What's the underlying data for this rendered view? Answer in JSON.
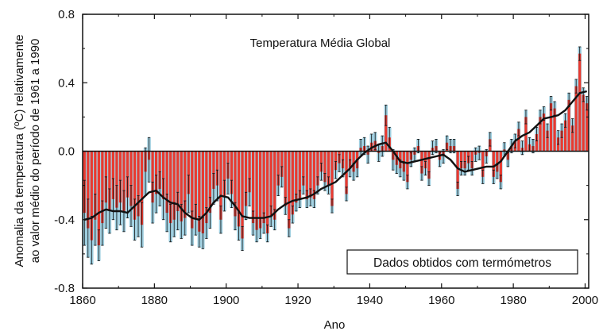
{
  "chart_data": {
    "type": "bar",
    "title": "Temperatura Média Global",
    "xlabel": "Ano",
    "ylabel_lines": [
      "Anomalia da temperatura (ºC) relativamente",
      "ao valor médio do período de 1961 a 1990"
    ],
    "annotation": "Dados obtidos com termómetros",
    "xlim": [
      1860,
      2001
    ],
    "ylim": [
      -0.8,
      0.8
    ],
    "x_ticks": [
      1860,
      1880,
      1900,
      1920,
      1940,
      1960,
      1980,
      2000
    ],
    "y_ticks": [
      {
        "value": 0.8,
        "label": "0.8"
      },
      {
        "value": 0.4,
        "label": "0.4"
      },
      {
        "value": 0.0,
        "label": "0.0"
      },
      {
        "value": -0.4,
        "label": "-0.4"
      },
      {
        "value": -0.8,
        "label": "-0.8"
      }
    ],
    "grid": false,
    "colors": {
      "bar": "#e83a30",
      "error_bar": "#111111",
      "uncertainty": "#9fcfe0",
      "smooth_line": "#111111",
      "zero_line": "#111111"
    },
    "anomaly_series": {
      "x": [
        1860,
        1861,
        1862,
        1863,
        1864,
        1865,
        1866,
        1867,
        1868,
        1869,
        1870,
        1871,
        1872,
        1873,
        1874,
        1875,
        1876,
        1877,
        1878,
        1879,
        1880,
        1881,
        1882,
        1883,
        1884,
        1885,
        1886,
        1887,
        1888,
        1889,
        1890,
        1891,
        1892,
        1893,
        1894,
        1895,
        1896,
        1897,
        1898,
        1899,
        1900,
        1901,
        1902,
        1903,
        1904,
        1905,
        1906,
        1907,
        1908,
        1909,
        1910,
        1911,
        1912,
        1913,
        1914,
        1915,
        1916,
        1917,
        1918,
        1919,
        1920,
        1921,
        1922,
        1923,
        1924,
        1925,
        1926,
        1927,
        1928,
        1929,
        1930,
        1931,
        1932,
        1933,
        1934,
        1935,
        1936,
        1937,
        1938,
        1939,
        1940,
        1941,
        1942,
        1943,
        1944,
        1945,
        1946,
        1947,
        1948,
        1949,
        1950,
        1951,
        1952,
        1953,
        1954,
        1955,
        1956,
        1957,
        1958,
        1959,
        1960,
        1961,
        1962,
        1963,
        1964,
        1965,
        1966,
        1967,
        1968,
        1969,
        1970,
        1971,
        1972,
        1973,
        1974,
        1975,
        1976,
        1977,
        1978,
        1979,
        1980,
        1981,
        1982,
        1983,
        1984,
        1985,
        1986,
        1987,
        1988,
        1989,
        1990,
        1991,
        1992,
        1993,
        1994,
        1995,
        1996,
        1997,
        1998,
        1999,
        2000
      ],
      "values": [
        -0.36,
        -0.45,
        -0.52,
        -0.4,
        -0.55,
        -0.42,
        -0.3,
        -0.35,
        -0.28,
        -0.33,
        -0.3,
        -0.35,
        -0.27,
        -0.32,
        -0.4,
        -0.38,
        -0.43,
        -0.12,
        -0.05,
        -0.3,
        -0.25,
        -0.22,
        -0.28,
        -0.36,
        -0.42,
        -0.4,
        -0.35,
        -0.41,
        -0.39,
        -0.25,
        -0.45,
        -0.4,
        -0.47,
        -0.48,
        -0.42,
        -0.36,
        -0.22,
        -0.2,
        -0.4,
        -0.26,
        -0.16,
        -0.25,
        -0.38,
        -0.44,
        -0.51,
        -0.32,
        -0.24,
        -0.42,
        -0.46,
        -0.45,
        -0.42,
        -0.48,
        -0.38,
        -0.4,
        -0.2,
        -0.15,
        -0.32,
        -0.45,
        -0.37,
        -0.3,
        -0.28,
        -0.2,
        -0.28,
        -0.27,
        -0.28,
        -0.2,
        -0.12,
        -0.18,
        -0.2,
        -0.32,
        -0.11,
        -0.07,
        -0.1,
        -0.25,
        -0.1,
        -0.12,
        -0.1,
        0.02,
        0.03,
        -0.02,
        0.05,
        0.06,
        -0.01,
        0.03,
        0.21,
        0.08,
        -0.05,
        -0.08,
        -0.1,
        -0.12,
        -0.18,
        -0.05,
        -0.02,
        0.03,
        -0.13,
        -0.1,
        -0.16,
        0.02,
        0.03,
        -0.05,
        -0.03,
        0.05,
        0.03,
        0.03,
        -0.22,
        -0.1,
        -0.1,
        -0.07,
        -0.1,
        -0.02,
        -0.01,
        -0.15,
        -0.03,
        0.07,
        -0.15,
        -0.12,
        -0.18,
        0.01,
        -0.05,
        0.03,
        0.06,
        0.13,
        0.02,
        0.2,
        0.04,
        0.03,
        0.1,
        0.2,
        0.22,
        0.12,
        0.28,
        0.25,
        0.08,
        0.12,
        0.18,
        0.3,
        0.15,
        0.38,
        0.57,
        0.33,
        0.28
      ],
      "uncertainty_low": [
        -0.55,
        -0.62,
        -0.66,
        -0.55,
        -0.64,
        -0.55,
        -0.45,
        -0.48,
        -0.4,
        -0.46,
        -0.43,
        -0.47,
        -0.39,
        -0.44,
        -0.52,
        -0.5,
        -0.56,
        -0.26,
        -0.18,
        -0.42,
        -0.36,
        -0.32,
        -0.4,
        -0.47,
        -0.53,
        -0.5,
        -0.46,
        -0.51,
        -0.49,
        -0.36,
        -0.55,
        -0.49,
        -0.56,
        -0.57,
        -0.51,
        -0.45,
        -0.31,
        -0.29,
        -0.48,
        -0.35,
        -0.25,
        -0.33,
        -0.46,
        -0.52,
        -0.58,
        -0.4,
        -0.32,
        -0.49,
        -0.53,
        -0.51,
        -0.48,
        -0.53,
        -0.44,
        -0.46,
        -0.26,
        -0.21,
        -0.37,
        -0.5,
        -0.42,
        -0.35,
        -0.33,
        -0.25,
        -0.33,
        -0.32,
        -0.33,
        -0.25,
        -0.17,
        -0.23,
        -0.25,
        -0.36,
        -0.16,
        -0.12,
        -0.15,
        -0.29,
        -0.15,
        -0.17,
        -0.15,
        -0.03,
        -0.02,
        -0.07,
        0.0,
        0.01,
        -0.06,
        -0.03,
        0.15,
        0.02,
        -0.11,
        -0.13,
        -0.15,
        -0.17,
        -0.22,
        -0.09,
        -0.06,
        -0.01,
        -0.17,
        -0.14,
        -0.2,
        -0.02,
        -0.01,
        -0.09,
        -0.07,
        0.01,
        -0.01,
        -0.01,
        -0.26,
        -0.14,
        -0.14,
        -0.11,
        -0.14,
        -0.06,
        -0.05,
        -0.19,
        -0.07,
        0.03,
        -0.19,
        -0.16,
        -0.22,
        -0.03,
        -0.09,
        -0.01,
        0.02,
        0.09,
        -0.02,
        0.16,
        0.0,
        -0.01,
        0.06,
        0.16,
        0.18,
        0.08,
        0.24,
        0.21,
        0.04,
        0.08,
        0.14,
        0.26,
        0.11,
        0.34,
        0.53,
        0.29,
        0.24
      ],
      "uncertainty_high": [
        -0.17,
        -0.28,
        -0.38,
        -0.25,
        -0.46,
        -0.29,
        -0.15,
        -0.22,
        -0.16,
        -0.2,
        -0.17,
        -0.23,
        -0.15,
        -0.2,
        -0.28,
        -0.26,
        -0.3,
        0.02,
        0.08,
        -0.18,
        -0.14,
        -0.12,
        -0.16,
        -0.25,
        -0.31,
        -0.3,
        -0.24,
        -0.31,
        -0.29,
        -0.14,
        -0.35,
        -0.31,
        -0.38,
        -0.39,
        -0.33,
        -0.27,
        -0.13,
        -0.11,
        -0.32,
        -0.17,
        -0.07,
        -0.17,
        -0.3,
        -0.36,
        -0.44,
        -0.24,
        -0.16,
        -0.35,
        -0.39,
        -0.39,
        -0.36,
        -0.43,
        -0.32,
        -0.34,
        -0.14,
        -0.09,
        -0.27,
        -0.4,
        -0.32,
        -0.25,
        -0.23,
        -0.15,
        -0.23,
        -0.22,
        -0.23,
        -0.15,
        -0.07,
        -0.13,
        -0.15,
        -0.28,
        -0.06,
        -0.02,
        -0.05,
        -0.21,
        -0.05,
        -0.07,
        -0.05,
        0.07,
        0.08,
        0.03,
        0.1,
        0.11,
        0.04,
        0.09,
        0.27,
        0.14,
        0.01,
        -0.03,
        -0.05,
        -0.07,
        -0.14,
        -0.01,
        0.02,
        0.07,
        -0.09,
        -0.06,
        -0.12,
        0.06,
        0.07,
        -0.01,
        0.01,
        0.09,
        0.07,
        0.07,
        -0.18,
        -0.06,
        -0.06,
        -0.03,
        -0.06,
        0.02,
        0.03,
        -0.11,
        0.01,
        0.11,
        -0.11,
        -0.08,
        -0.14,
        0.05,
        -0.01,
        0.07,
        0.1,
        0.17,
        0.06,
        0.24,
        0.08,
        0.07,
        0.14,
        0.24,
        0.26,
        0.16,
        0.32,
        0.29,
        0.12,
        0.16,
        0.22,
        0.34,
        0.19,
        0.42,
        0.61,
        0.37,
        0.32
      ]
    },
    "smoothed_series": {
      "x": [
        1860,
        1862,
        1864,
        1866,
        1868,
        1870,
        1872,
        1874,
        1876,
        1878,
        1880,
        1882,
        1884,
        1886,
        1888,
        1890,
        1892,
        1894,
        1896,
        1898,
        1900,
        1902,
        1904,
        1906,
        1908,
        1910,
        1912,
        1914,
        1916,
        1918,
        1920,
        1922,
        1924,
        1926,
        1928,
        1930,
        1932,
        1934,
        1936,
        1938,
        1940,
        1942,
        1944,
        1946,
        1948,
        1950,
        1952,
        1954,
        1956,
        1958,
        1960,
        1962,
        1964,
        1966,
        1968,
        1970,
        1972,
        1974,
        1976,
        1978,
        1980,
        1982,
        1984,
        1986,
        1988,
        1990,
        1992,
        1994,
        1996,
        1998,
        2000
      ],
      "values": [
        -0.4,
        -0.39,
        -0.36,
        -0.34,
        -0.35,
        -0.35,
        -0.36,
        -0.32,
        -0.28,
        -0.24,
        -0.23,
        -0.27,
        -0.3,
        -0.31,
        -0.36,
        -0.39,
        -0.4,
        -0.36,
        -0.3,
        -0.26,
        -0.27,
        -0.32,
        -0.38,
        -0.39,
        -0.39,
        -0.39,
        -0.38,
        -0.34,
        -0.31,
        -0.29,
        -0.28,
        -0.27,
        -0.25,
        -0.22,
        -0.2,
        -0.18,
        -0.14,
        -0.1,
        -0.05,
        -0.01,
        0.02,
        0.04,
        0.05,
        0.0,
        -0.06,
        -0.07,
        -0.06,
        -0.05,
        -0.04,
        -0.03,
        -0.02,
        -0.05,
        -0.1,
        -0.12,
        -0.11,
        -0.1,
        -0.09,
        -0.09,
        -0.06,
        0.0,
        0.06,
        0.09,
        0.11,
        0.15,
        0.19,
        0.2,
        0.21,
        0.24,
        0.29,
        0.34,
        0.35
      ]
    }
  }
}
